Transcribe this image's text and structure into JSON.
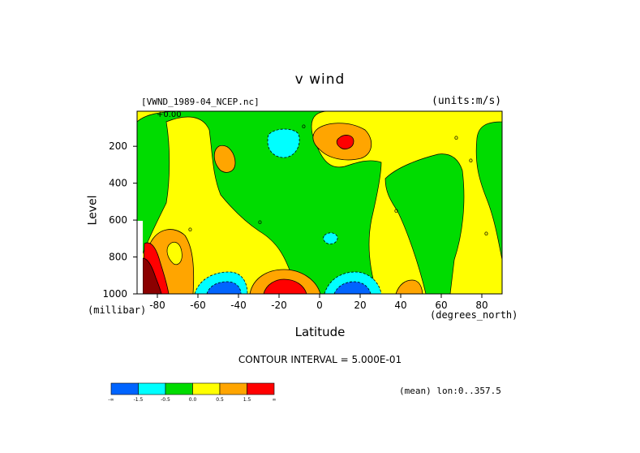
{
  "chart_data": {
    "type": "heatmap",
    "title": "v wind",
    "dataset": "[VWND_1989-04_NCEP.nc]",
    "units": "(units:m/s)",
    "xlabel": "Latitude",
    "xunits": "(degrees_north)",
    "ylabel": "Level",
    "yunits": "(millibar)",
    "xlim": [
      -90,
      90
    ],
    "ylim": [
      1000,
      10
    ],
    "x_ticks": [
      "-80",
      "-60",
      "-40",
      "-20",
      "0",
      "20",
      "40",
      "60",
      "80"
    ],
    "y_ticks": [
      "200",
      "400",
      "600",
      "800",
      "1000"
    ],
    "contour_interval": "CONTOUR INTERVAL = 5.000E-01",
    "note": "(mean) lon:0..357.5",
    "top_contour_label": "+0.00",
    "colorbar": {
      "labels": [
        "-∞",
        "-1.5",
        "-0.5",
        "0.0",
        "0.5",
        "1.5",
        "∞"
      ],
      "colors": [
        "#0064ff",
        "#00ffff",
        "#00dc00",
        "#ffff00",
        "#ffa500",
        "#ff0000"
      ]
    },
    "features": [
      {
        "lat": -80,
        "level": 950,
        "value": 3.0,
        "sign": "positive",
        "color": "#8b0000"
      },
      {
        "lat": -72,
        "level": 800,
        "value": 0.8,
        "sign": "positive",
        "color": "#ffa500"
      },
      {
        "lat": -52,
        "level": 980,
        "value": -2.0,
        "sign": "negative",
        "color": "#0064ff"
      },
      {
        "lat": -20,
        "level": 990,
        "value": 2.5,
        "sign": "positive",
        "color": "#ff0000"
      },
      {
        "lat": 12,
        "level": 990,
        "value": -2.0,
        "sign": "negative",
        "color": "#0064ff"
      },
      {
        "lat": 12,
        "level": 150,
        "value": 1.8,
        "sign": "positive",
        "color": "#ff0000"
      },
      {
        "lat": -19,
        "level": 170,
        "value": -0.8,
        "sign": "negative",
        "color": "#00ffff"
      },
      {
        "lat": -45,
        "level": 230,
        "value": 0.7,
        "sign": "positive",
        "color": "#ffa500"
      },
      {
        "lat": 5,
        "level": 660,
        "value": -0.6,
        "sign": "negative",
        "color": "#00ffff"
      },
      {
        "lat": 45,
        "level": 990,
        "value": 0.6,
        "sign": "positive",
        "color": "#ffa500"
      }
    ]
  }
}
